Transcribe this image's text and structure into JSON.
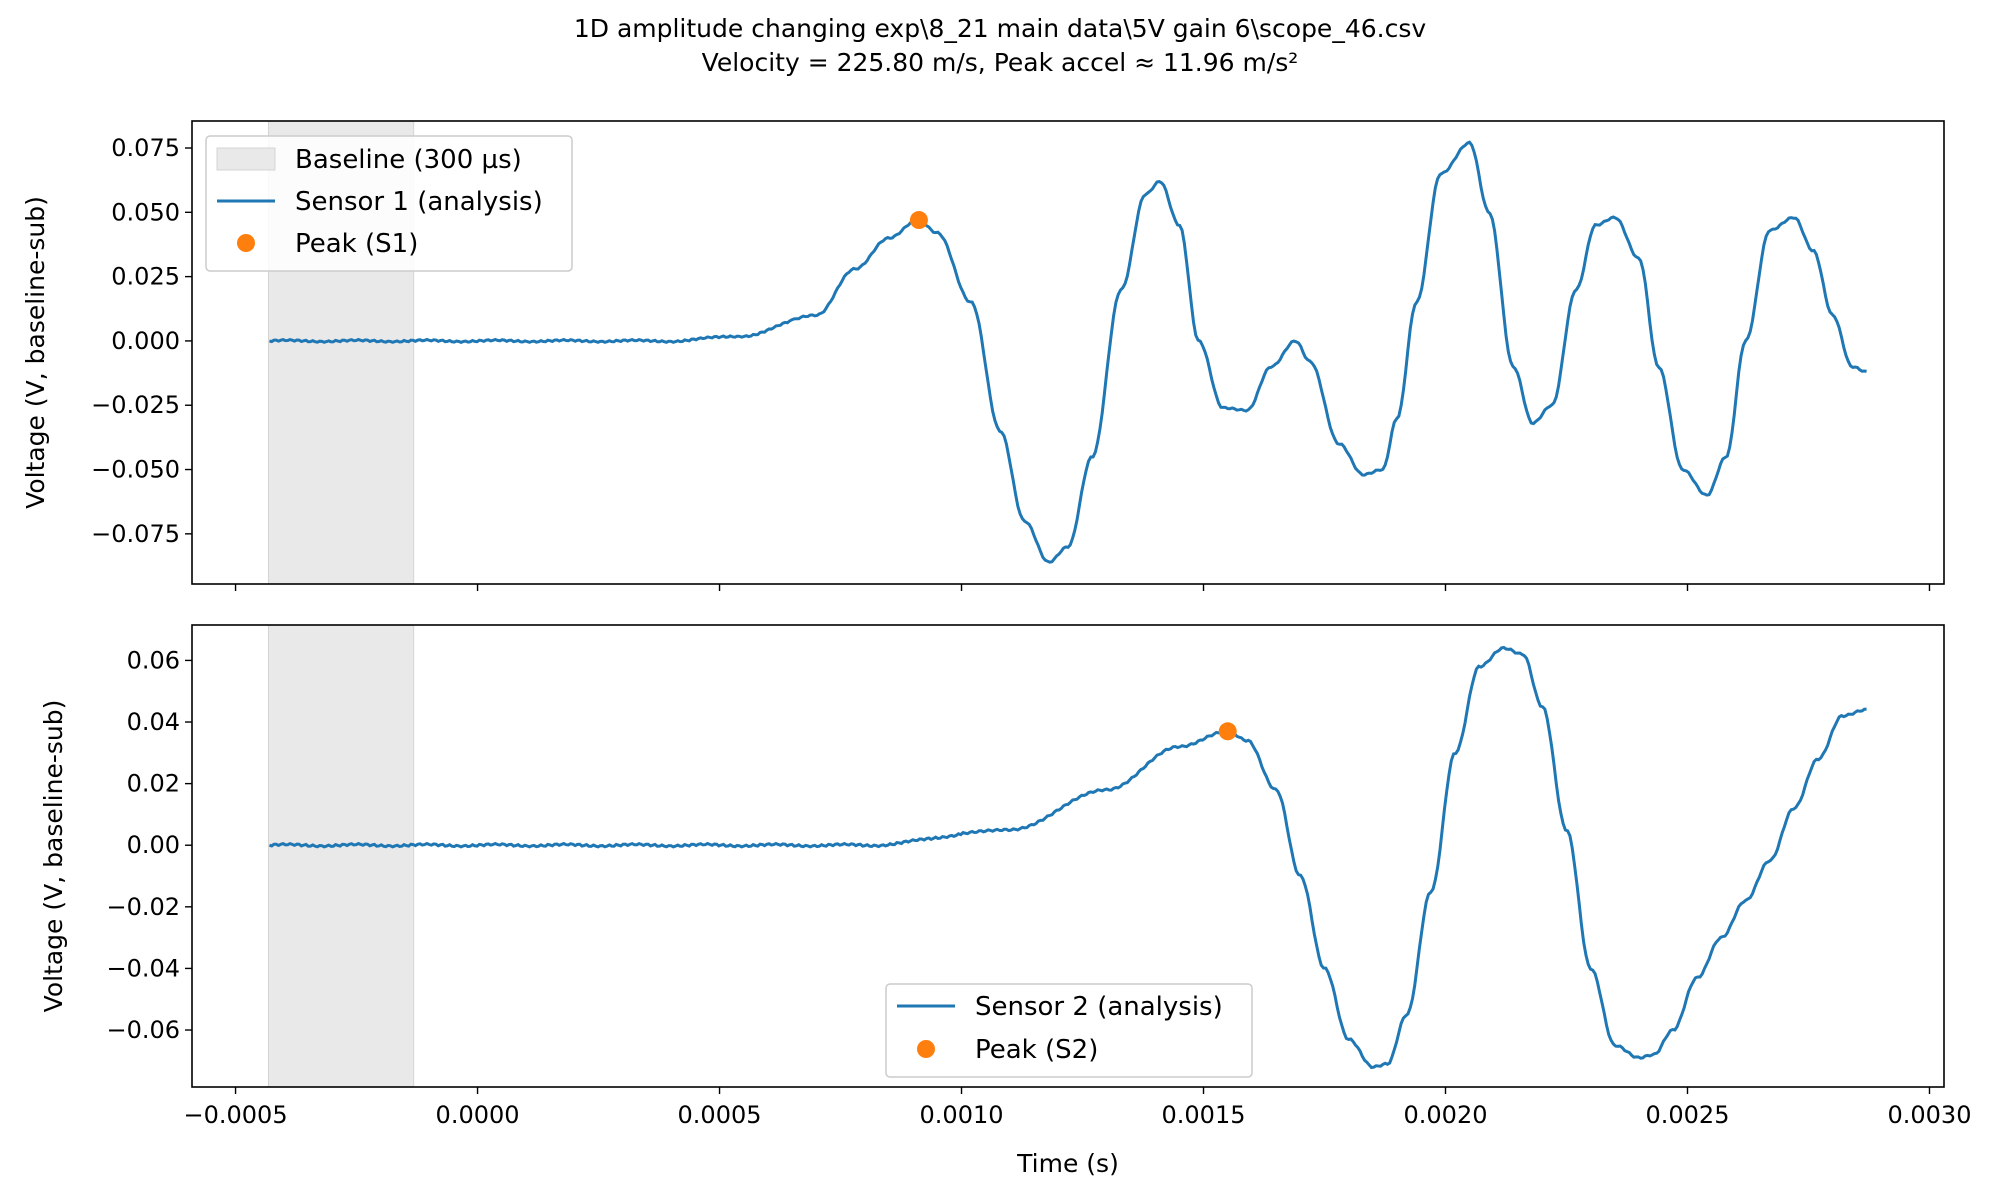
{
  "chart_data": {
    "type": "line",
    "title": "1D amplitude changing exp\\8_21 main data\\5V gain 6\\scope_46.csv",
    "subtitle": "Velocity = 225.80 m/s, Peak accel ≈ 11.96 m/s²",
    "xlabel": "Time (s)",
    "xlim": [
      -0.00059,
      0.00303
    ],
    "xticks": [
      -0.0005,
      0.0,
      0.0005,
      0.001,
      0.0015,
      0.002,
      0.0025,
      0.003
    ],
    "xtick_labels": [
      "−0.0005",
      "0.0000",
      "0.0005",
      "0.0010",
      "0.0015",
      "0.0020",
      "0.0025",
      "0.0030"
    ],
    "baseline_span": [
      -0.000432,
      -0.000132
    ],
    "colors": {
      "line": "#1f77b4",
      "peak": "#ff7f0e",
      "baseline": "#e9e9e9"
    },
    "panels": [
      {
        "ylabel": "Voltage (V, baseline-sub)",
        "ylim": [
          -0.0945,
          0.0855
        ],
        "yticks": [
          -0.075,
          -0.05,
          -0.025,
          0.0,
          0.025,
          0.05,
          0.075
        ],
        "ytick_labels": [
          "−0.075",
          "−0.050",
          "−0.025",
          "0.000",
          "0.025",
          "0.050",
          "0.075"
        ],
        "legend_loc": "upper left",
        "legend": {
          "baseline": "Baseline (300 µs)",
          "line": "Sensor 1 (analysis)",
          "peak": "Peak (S1)"
        },
        "series": {
          "name": "Sensor 1 (analysis)",
          "x": [
            -0.00043,
            0.0,
            0.0004,
            0.00055,
            0.0007,
            0.00078,
            0.00085,
            0.00091,
            0.00095,
            0.00102,
            0.00108,
            0.00113,
            0.00118,
            0.00122,
            0.00127,
            0.00133,
            0.00138,
            0.00141,
            0.00145,
            0.00149,
            0.00154,
            0.00159,
            0.00164,
            0.00169,
            0.00172,
            0.00178,
            0.00183,
            0.00187,
            0.0019,
            0.00194,
            0.00199,
            0.00205,
            0.00209,
            0.00214,
            0.00218,
            0.00222,
            0.00227,
            0.00231,
            0.00235,
            0.0024,
            0.00244,
            0.00249,
            0.00254,
            0.00258,
            0.00262,
            0.00267,
            0.00272,
            0.00276,
            0.0028,
            0.00284,
            0.00287
          ],
          "y": [
            0.0,
            0.0,
            0.0,
            0.002,
            0.01,
            0.028,
            0.04,
            0.047,
            0.042,
            0.015,
            -0.035,
            -0.07,
            -0.086,
            -0.08,
            -0.045,
            0.02,
            0.057,
            0.062,
            0.045,
            0.0,
            -0.026,
            -0.027,
            -0.01,
            0.0,
            -0.008,
            -0.04,
            -0.052,
            -0.05,
            -0.03,
            0.015,
            0.065,
            0.077,
            0.05,
            -0.01,
            -0.032,
            -0.025,
            0.02,
            0.045,
            0.048,
            0.032,
            -0.01,
            -0.05,
            -0.06,
            -0.045,
            0.0,
            0.043,
            0.048,
            0.035,
            0.01,
            -0.01,
            -0.012
          ],
          "noise_until": 0.00065
        },
        "peak": {
          "x": 0.000912,
          "y": 0.047
        }
      },
      {
        "ylabel": "Voltage (V, baseline-sub)",
        "xlabel": "Time (s)",
        "ylim": [
          -0.0785,
          0.0715
        ],
        "yticks": [
          -0.06,
          -0.04,
          -0.02,
          0.0,
          0.02,
          0.04,
          0.06
        ],
        "ytick_labels": [
          "−0.06",
          "−0.04",
          "−0.02",
          "0.00",
          "0.02",
          "0.04",
          "0.06"
        ],
        "legend_loc": "lower center",
        "legend": {
          "line": "Sensor 2 (analysis)",
          "peak": "Peak (S2)"
        },
        "series": {
          "name": "Sensor 2 (analysis)",
          "x": [
            -0.00043,
            0.0,
            0.0008,
            0.0011,
            0.0013,
            0.00145,
            0.00155,
            0.00159,
            0.00165,
            0.0017,
            0.00175,
            0.0018,
            0.00185,
            0.00188,
            0.00192,
            0.00197,
            0.00202,
            0.00207,
            0.00212,
            0.00216,
            0.0022,
            0.00225,
            0.0023,
            0.00235,
            0.0024,
            0.00243,
            0.00247,
            0.00252,
            0.00257,
            0.00262,
            0.00267,
            0.00272,
            0.00277,
            0.00282,
            0.00287
          ],
          "y": [
            0.0,
            0.0,
            0.0,
            0.005,
            0.018,
            0.032,
            0.037,
            0.034,
            0.018,
            -0.01,
            -0.04,
            -0.063,
            -0.072,
            -0.071,
            -0.055,
            -0.015,
            0.03,
            0.058,
            0.064,
            0.062,
            0.045,
            0.005,
            -0.04,
            -0.065,
            -0.069,
            -0.068,
            -0.06,
            -0.043,
            -0.03,
            -0.018,
            -0.005,
            0.012,
            0.028,
            0.042,
            0.044
          ],
          "noise_until": 0.001
        },
        "peak": {
          "x": 0.00155,
          "y": 0.037
        }
      }
    ]
  }
}
